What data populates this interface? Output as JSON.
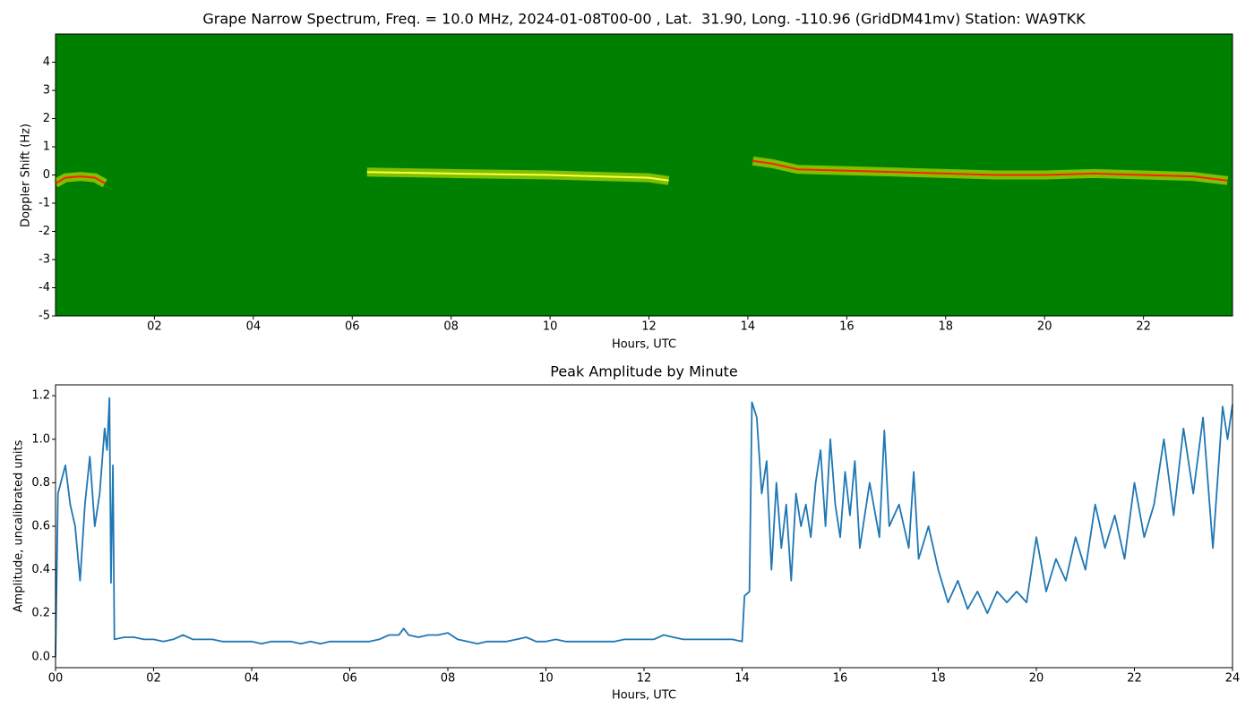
{
  "chart_data": [
    {
      "type": "spectrogram",
      "title": "Grape Narrow Spectrum, Freq. = 10.0 MHz, 2024-01-08T00-00 , Lat.  31.90, Long. -110.96 (GridDM41mv) Station: WA9TKK",
      "x_label": "Hours, UTC",
      "y_label": "Doppler Shift (Hz)",
      "background_color": "#008000",
      "xlim": [
        0,
        23.8
      ],
      "xticks": [
        {
          "value": 2,
          "label": "02"
        },
        {
          "value": 4,
          "label": "04"
        },
        {
          "value": 6,
          "label": "06"
        },
        {
          "value": 8,
          "label": "08"
        },
        {
          "value": 10,
          "label": "10"
        },
        {
          "value": 12,
          "label": "12"
        },
        {
          "value": 14,
          "label": "14"
        },
        {
          "value": 16,
          "label": "16"
        },
        {
          "value": 18,
          "label": "18"
        },
        {
          "value": 20,
          "label": "20"
        },
        {
          "value": 22,
          "label": "22"
        }
      ],
      "ylim": [
        -5,
        5
      ],
      "yticks": [
        -5,
        -4,
        -3,
        -2,
        -1,
        0,
        1,
        2,
        3,
        4
      ],
      "series": [
        {
          "color": "#ff2000",
          "x": [
            0,
            0.2,
            0.5,
            0.8,
            1.0,
            1.1,
            14.1,
            14.5,
            15,
            16,
            17,
            18,
            19,
            20,
            21,
            22,
            23,
            23.7
          ],
          "values": [
            -0.3,
            -0.1,
            -0.05,
            -0.1,
            -0.3,
            null,
            0.5,
            0.4,
            0.2,
            0.15,
            0.1,
            0.05,
            0,
            0,
            0.05,
            0,
            -0.05,
            -0.2
          ]
        },
        {
          "color": "#ffff40",
          "x": [
            6.3,
            8,
            10,
            12,
            12.4
          ],
          "values": [
            0.1,
            0.05,
            0,
            -0.1,
            -0.2
          ]
        }
      ]
    },
    {
      "type": "line",
      "title": "Peak Amplitude by Minute",
      "x_label": "Hours, UTC",
      "y_label": "Amplitude, uncalibrated units",
      "xlim": [
        0,
        24
      ],
      "xticks": [
        {
          "value": 0,
          "label": "00"
        },
        {
          "value": 2,
          "label": "02"
        },
        {
          "value": 4,
          "label": "04"
        },
        {
          "value": 6,
          "label": "06"
        },
        {
          "value": 8,
          "label": "08"
        },
        {
          "value": 10,
          "label": "10"
        },
        {
          "value": 12,
          "label": "12"
        },
        {
          "value": 14,
          "label": "14"
        },
        {
          "value": 16,
          "label": "16"
        },
        {
          "value": 18,
          "label": "18"
        },
        {
          "value": 20,
          "label": "20"
        },
        {
          "value": 22,
          "label": "22"
        },
        {
          "value": 24,
          "label": "24"
        }
      ],
      "ylim": [
        -0.05,
        1.25
      ],
      "yticks": [
        {
          "value": 0,
          "label": "0.0"
        },
        0.2,
        0.4,
        0.6,
        0.8,
        {
          "value": 1,
          "label": "1.0"
        },
        1.2
      ],
      "series": [
        {
          "color": "#1f77b4",
          "x": [
            0,
            0.05,
            0.2,
            0.3,
            0.4,
            0.5,
            0.6,
            0.7,
            0.8,
            0.9,
            1.0,
            1.05,
            1.1,
            1.13,
            1.17,
            1.2,
            1.4,
            1.6,
            1.8,
            2.0,
            2.2,
            2.4,
            2.6,
            2.8,
            3.0,
            3.2,
            3.4,
            3.6,
            3.8,
            4.0,
            4.2,
            4.4,
            4.6,
            4.8,
            5.0,
            5.2,
            5.4,
            5.6,
            5.8,
            6.0,
            6.2,
            6.4,
            6.6,
            6.8,
            7.0,
            7.1,
            7.2,
            7.4,
            7.6,
            7.8,
            8.0,
            8.2,
            8.4,
            8.6,
            8.8,
            9.0,
            9.2,
            9.4,
            9.6,
            9.8,
            10.0,
            10.2,
            10.4,
            10.6,
            10.8,
            11.0,
            11.2,
            11.4,
            11.6,
            11.8,
            12.0,
            12.2,
            12.4,
            12.6,
            12.8,
            13.0,
            13.2,
            13.4,
            13.6,
            13.8,
            14.0,
            14.05,
            14.15,
            14.2,
            14.3,
            14.4,
            14.5,
            14.6,
            14.7,
            14.8,
            14.9,
            15.0,
            15.1,
            15.2,
            15.3,
            15.4,
            15.5,
            15.6,
            15.7,
            15.8,
            15.9,
            16.0,
            16.1,
            16.2,
            16.3,
            16.4,
            16.6,
            16.8,
            16.9,
            17.0,
            17.2,
            17.4,
            17.5,
            17.6,
            17.8,
            18.0,
            18.2,
            18.4,
            18.6,
            18.8,
            19.0,
            19.2,
            19.4,
            19.6,
            19.8,
            20.0,
            20.2,
            20.4,
            20.6,
            20.8,
            21.0,
            21.2,
            21.4,
            21.6,
            21.8,
            22.0,
            22.2,
            22.4,
            22.6,
            22.8,
            23.0,
            23.2,
            23.4,
            23.6,
            23.8,
            23.9,
            24.0
          ],
          "values": [
            0.0,
            0.75,
            0.88,
            0.7,
            0.6,
            0.35,
            0.7,
            0.92,
            0.6,
            0.75,
            1.05,
            0.95,
            1.19,
            0.34,
            0.88,
            0.08,
            0.09,
            0.09,
            0.08,
            0.08,
            0.07,
            0.08,
            0.1,
            0.08,
            0.08,
            0.08,
            0.07,
            0.07,
            0.07,
            0.07,
            0.06,
            0.07,
            0.07,
            0.07,
            0.06,
            0.07,
            0.06,
            0.07,
            0.07,
            0.07,
            0.07,
            0.07,
            0.08,
            0.1,
            0.1,
            0.13,
            0.1,
            0.09,
            0.1,
            0.1,
            0.11,
            0.08,
            0.07,
            0.06,
            0.07,
            0.07,
            0.07,
            0.08,
            0.09,
            0.07,
            0.07,
            0.08,
            0.07,
            0.07,
            0.07,
            0.07,
            0.07,
            0.07,
            0.08,
            0.08,
            0.08,
            0.08,
            0.1,
            0.09,
            0.08,
            0.08,
            0.08,
            0.08,
            0.08,
            0.08,
            0.07,
            0.28,
            0.3,
            1.17,
            1.1,
            0.75,
            0.9,
            0.4,
            0.8,
            0.5,
            0.7,
            0.35,
            0.75,
            0.6,
            0.7,
            0.55,
            0.8,
            0.95,
            0.6,
            1.0,
            0.7,
            0.55,
            0.85,
            0.65,
            0.9,
            0.5,
            0.8,
            0.55,
            1.04,
            0.6,
            0.7,
            0.5,
            0.85,
            0.45,
            0.6,
            0.4,
            0.25,
            0.35,
            0.22,
            0.3,
            0.2,
            0.3,
            0.25,
            0.3,
            0.25,
            0.55,
            0.3,
            0.45,
            0.35,
            0.55,
            0.4,
            0.7,
            0.5,
            0.65,
            0.45,
            0.8,
            0.55,
            0.7,
            1.0,
            0.65,
            1.05,
            0.75,
            1.1,
            0.5,
            1.15,
            1.0,
            1.16
          ]
        }
      ]
    }
  ]
}
